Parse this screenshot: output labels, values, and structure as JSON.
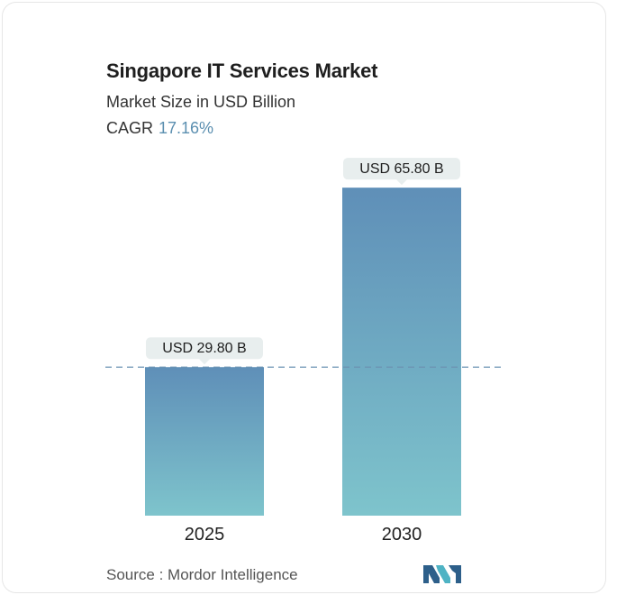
{
  "header": {
    "title": "Singapore IT Services Market",
    "subtitle": "Market Size in USD Billion",
    "cagr_label": "CAGR",
    "cagr_value": "17.16%"
  },
  "chart_data": {
    "type": "bar",
    "title": "Singapore IT Services Market",
    "subtitle": "Market Size in USD Billion",
    "categories": [
      "2025",
      "2030"
    ],
    "values": [
      29.8,
      65.8
    ],
    "data_labels": [
      "USD 29.80 B",
      "USD 65.80 B"
    ],
    "ylim": [
      0,
      68
    ],
    "grid": false,
    "reference_line": 29.8,
    "colors": {
      "bar_top": "#5f8fb8",
      "bar_bottom": "#7ec4cc",
      "label_bg": "#e8eeee",
      "reference_line": "#6b93b3"
    }
  },
  "footer": {
    "source": "Source :  Mordor Intelligence",
    "logo_icon": "mordor-intelligence-logo-icon",
    "logo_colors": [
      "#2d5f8a",
      "#4fb3c4"
    ]
  }
}
